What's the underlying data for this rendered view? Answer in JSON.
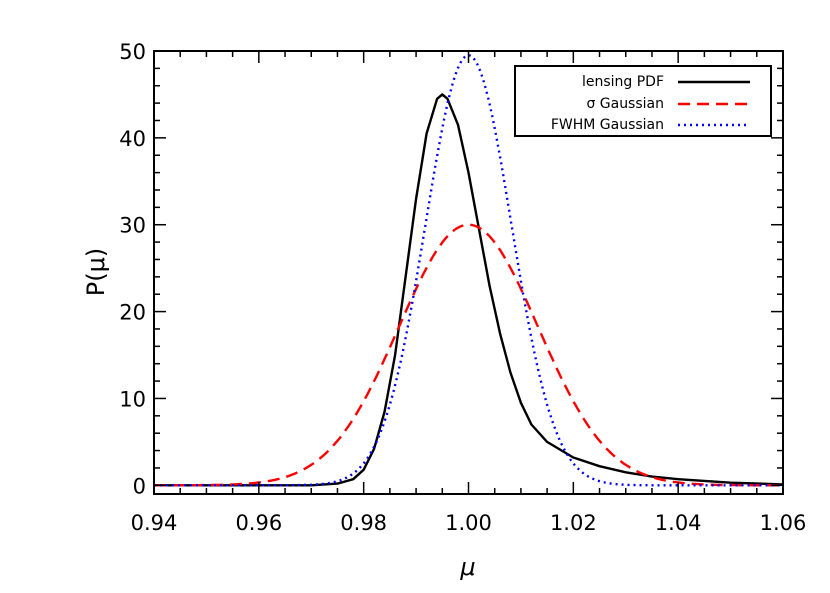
{
  "chart_data": {
    "type": "line",
    "title": "",
    "xlabel": "μ",
    "ylabel": "P(μ)",
    "xlim": [
      0.94,
      1.06
    ],
    "ylim": [
      -1,
      50
    ],
    "x_ticks": [
      "0.94",
      "0.96",
      "0.98",
      "1.00",
      "1.02",
      "1.04",
      "1.06"
    ],
    "y_ticks": [
      "0",
      "10",
      "20",
      "30",
      "40",
      "50"
    ],
    "legend_position": "top-right",
    "grid": false,
    "series": [
      {
        "name": "lensing PDF",
        "color": "#000000",
        "dash": "solid",
        "x": [
          0.94,
          0.96,
          0.97,
          0.975,
          0.978,
          0.98,
          0.982,
          0.984,
          0.986,
          0.988,
          0.99,
          0.992,
          0.994,
          0.995,
          0.996,
          0.998,
          1.0,
          1.002,
          1.004,
          1.006,
          1.008,
          1.01,
          1.012,
          1.015,
          1.02,
          1.025,
          1.03,
          1.035,
          1.04,
          1.05,
          1.06
        ],
        "y": [
          0,
          0,
          0,
          0.2,
          0.7,
          1.8,
          4.2,
          8.5,
          15,
          24,
          33,
          40.5,
          44.5,
          45,
          44.5,
          41.5,
          36,
          29.5,
          23,
          17.5,
          13,
          9.5,
          7,
          5,
          3.2,
          2.2,
          1.5,
          1.0,
          0.7,
          0.3,
          0.1
        ]
      },
      {
        "name": "σ Gaussian",
        "color": "#ff0000",
        "dash": "dashed",
        "gaussian": {
          "mean": 1.0,
          "sigma": 0.0133,
          "peak": 30
        }
      },
      {
        "name": "FWHM Gaussian",
        "color": "#0000ff",
        "dash": "dotted",
        "gaussian": {
          "mean": 1.0,
          "sigma": 0.0082,
          "peak": 49.5
        }
      }
    ]
  }
}
